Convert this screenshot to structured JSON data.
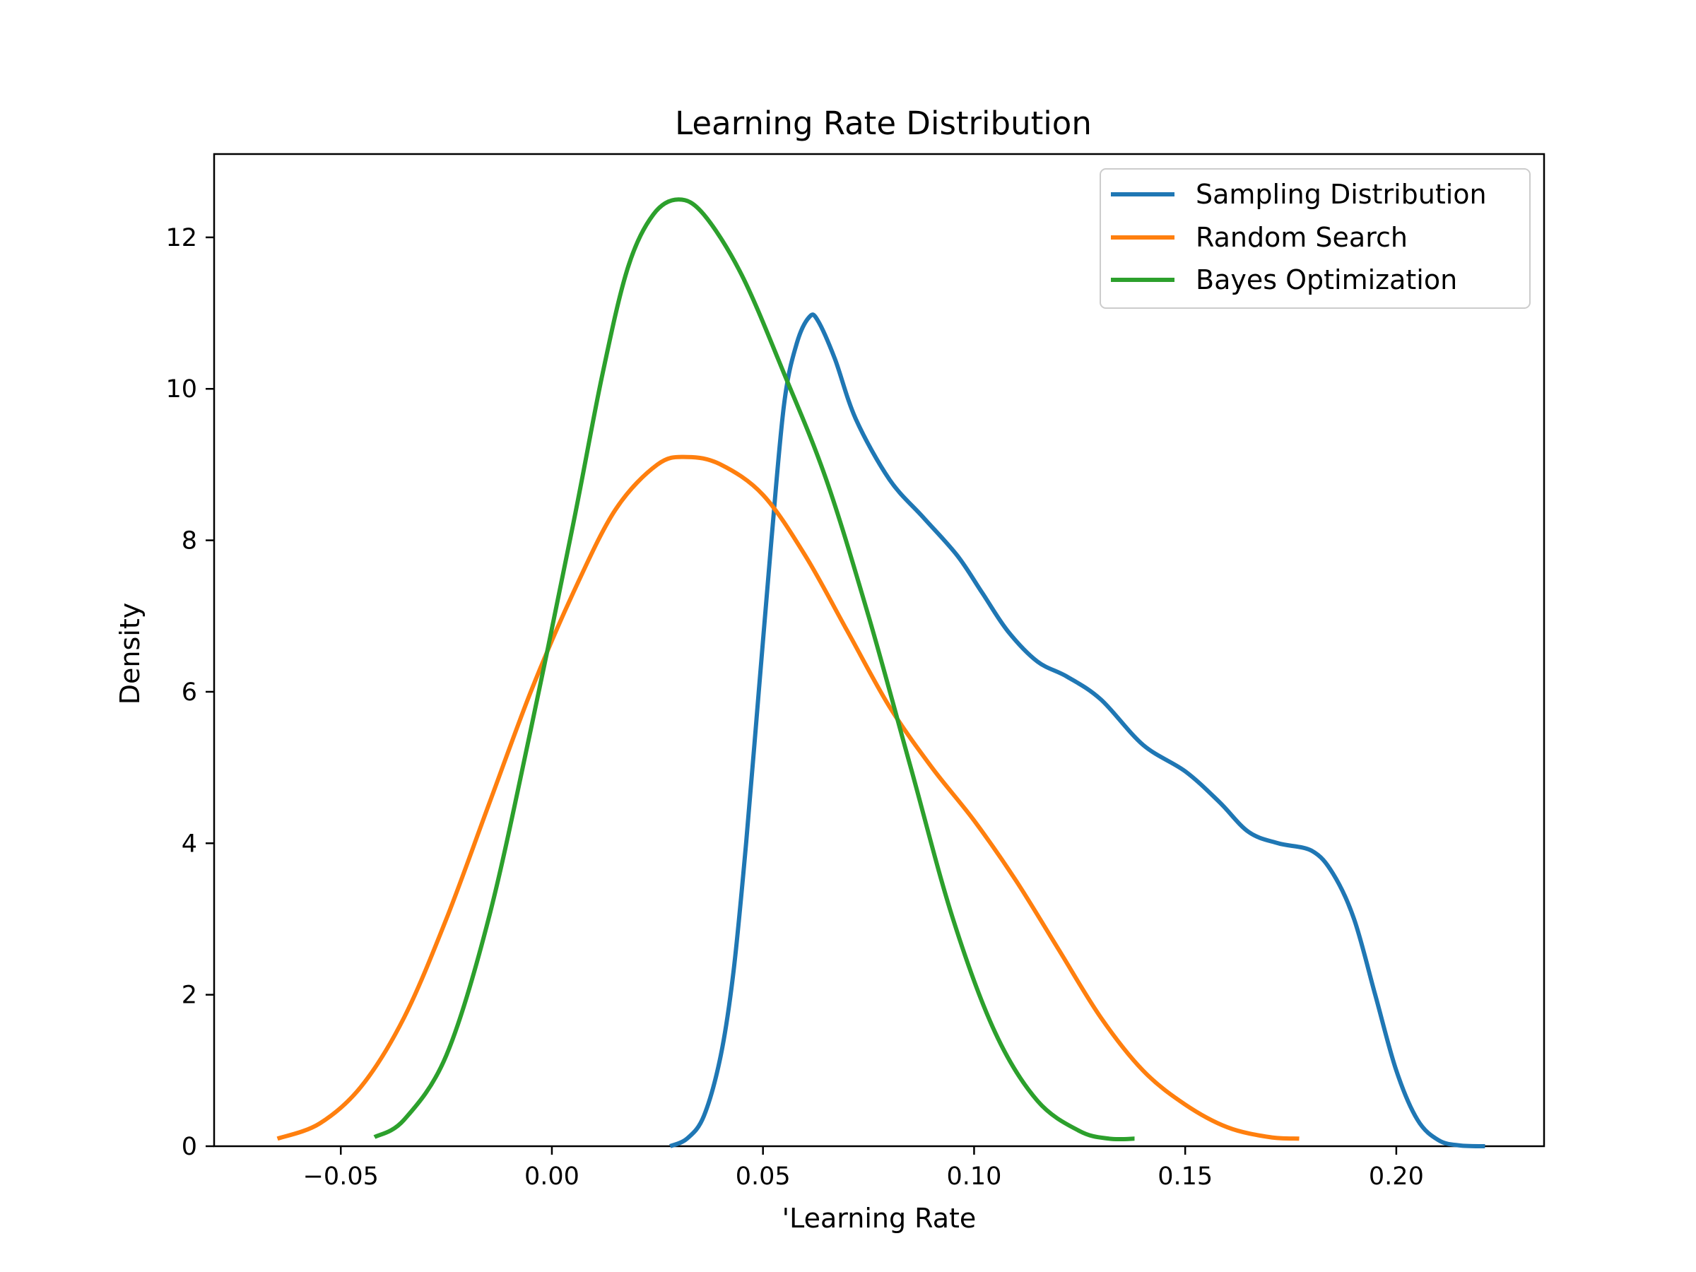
{
  "chart_data": {
    "type": "line",
    "title": "Learning Rate Distribution",
    "xlabel": "'Learning Rate",
    "ylabel": "Density",
    "xlim": [
      -0.08,
      0.235
    ],
    "ylim": [
      0,
      13.1
    ],
    "xticks": [
      -0.05,
      0.0,
      0.05,
      0.1,
      0.15,
      0.2
    ],
    "xtick_labels": [
      "−0.05",
      "0.00",
      "0.05",
      "0.10",
      "0.15",
      "0.20"
    ],
    "yticks": [
      0,
      2,
      4,
      6,
      8,
      10,
      12
    ],
    "ytick_labels": [
      "0",
      "2",
      "4",
      "6",
      "8",
      "10",
      "12"
    ],
    "grid": false,
    "legend_position": "top-right",
    "series": [
      {
        "name": "Sampling Distribution",
        "color": "#1f77b4",
        "points": [
          [
            0.028,
            0.0
          ],
          [
            0.032,
            0.1
          ],
          [
            0.036,
            0.4
          ],
          [
            0.04,
            1.2
          ],
          [
            0.043,
            2.3
          ],
          [
            0.046,
            4.0
          ],
          [
            0.049,
            6.0
          ],
          [
            0.052,
            8.0
          ],
          [
            0.055,
            9.8
          ],
          [
            0.058,
            10.6
          ],
          [
            0.061,
            10.95
          ],
          [
            0.063,
            10.9
          ],
          [
            0.067,
            10.4
          ],
          [
            0.072,
            9.6
          ],
          [
            0.08,
            8.8
          ],
          [
            0.088,
            8.3
          ],
          [
            0.096,
            7.8
          ],
          [
            0.102,
            7.3
          ],
          [
            0.108,
            6.8
          ],
          [
            0.115,
            6.4
          ],
          [
            0.122,
            6.2
          ],
          [
            0.13,
            5.9
          ],
          [
            0.14,
            5.3
          ],
          [
            0.15,
            4.95
          ],
          [
            0.158,
            4.55
          ],
          [
            0.165,
            4.15
          ],
          [
            0.172,
            4.0
          ],
          [
            0.18,
            3.9
          ],
          [
            0.185,
            3.6
          ],
          [
            0.19,
            3.0
          ],
          [
            0.195,
            2.0
          ],
          [
            0.2,
            1.0
          ],
          [
            0.205,
            0.35
          ],
          [
            0.21,
            0.08
          ],
          [
            0.215,
            0.01
          ],
          [
            0.221,
            0.0
          ]
        ]
      },
      {
        "name": "Random Search",
        "color": "#ff7f0e",
        "points": [
          [
            -0.065,
            0.1
          ],
          [
            -0.055,
            0.3
          ],
          [
            -0.045,
            0.8
          ],
          [
            -0.035,
            1.7
          ],
          [
            -0.025,
            3.0
          ],
          [
            -0.015,
            4.5
          ],
          [
            -0.005,
            6.0
          ],
          [
            0.005,
            7.3
          ],
          [
            0.015,
            8.4
          ],
          [
            0.025,
            9.0
          ],
          [
            0.032,
            9.1
          ],
          [
            0.04,
            9.0
          ],
          [
            0.05,
            8.6
          ],
          [
            0.06,
            7.8
          ],
          [
            0.07,
            6.8
          ],
          [
            0.08,
            5.8
          ],
          [
            0.09,
            5.0
          ],
          [
            0.1,
            4.3
          ],
          [
            0.11,
            3.5
          ],
          [
            0.12,
            2.6
          ],
          [
            0.13,
            1.7
          ],
          [
            0.14,
            1.0
          ],
          [
            0.15,
            0.55
          ],
          [
            0.16,
            0.25
          ],
          [
            0.17,
            0.12
          ],
          [
            0.177,
            0.1
          ]
        ]
      },
      {
        "name": "Bayes Optimization",
        "color": "#2ca02c",
        "points": [
          [
            -0.042,
            0.12
          ],
          [
            -0.035,
            0.35
          ],
          [
            -0.025,
            1.2
          ],
          [
            -0.015,
            3.0
          ],
          [
            -0.005,
            5.5
          ],
          [
            0.005,
            8.2
          ],
          [
            0.012,
            10.2
          ],
          [
            0.018,
            11.6
          ],
          [
            0.024,
            12.3
          ],
          [
            0.03,
            12.5
          ],
          [
            0.036,
            12.3
          ],
          [
            0.045,
            11.5
          ],
          [
            0.055,
            10.2
          ],
          [
            0.065,
            8.8
          ],
          [
            0.075,
            7.0
          ],
          [
            0.085,
            5.0
          ],
          [
            0.095,
            3.0
          ],
          [
            0.105,
            1.5
          ],
          [
            0.115,
            0.6
          ],
          [
            0.125,
            0.2
          ],
          [
            0.132,
            0.1
          ],
          [
            0.138,
            0.1
          ]
        ]
      }
    ]
  }
}
